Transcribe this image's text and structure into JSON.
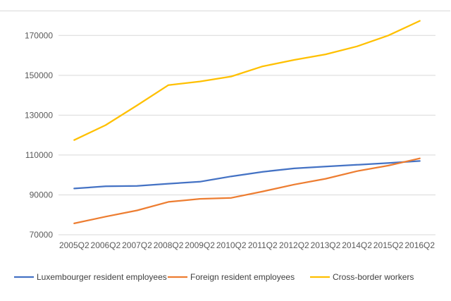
{
  "chart_data": {
    "type": "line",
    "title": "",
    "xlabel": "",
    "ylabel": "",
    "categories": [
      "2005Q2",
      "2006Q2",
      "2007Q2",
      "2008Q2",
      "2009Q2",
      "2010Q2",
      "2011Q2",
      "2012Q2",
      "2013Q2",
      "2014Q2",
      "2015Q2",
      "2016Q2"
    ],
    "ylim": [
      70000,
      180000
    ],
    "yticks": [
      70000,
      90000,
      110000,
      130000,
      150000,
      170000
    ],
    "ytick_labels": [
      "70000",
      "90000",
      "110000",
      "130000",
      "150000",
      "170000"
    ],
    "grid": "horizontal",
    "legend_position": "bottom",
    "series": [
      {
        "name": "Luxembourger resident employees",
        "color": "#4472c4",
        "values": [
          93200,
          94300,
          94500,
          95600,
          96600,
          99300,
          101600,
          103300,
          104200,
          105100,
          106000,
          107000
        ]
      },
      {
        "name": "Foreign resident employees",
        "color": "#ed7d31",
        "values": [
          75700,
          79100,
          82200,
          86500,
          88000,
          88500,
          91700,
          95200,
          98100,
          101900,
          104700,
          108300
        ]
      },
      {
        "name": "Cross-border workers",
        "color": "#ffc000",
        "values": [
          117500,
          125000,
          134900,
          145100,
          146900,
          149400,
          154500,
          157700,
          160500,
          164500,
          170000,
          177300
        ]
      }
    ]
  }
}
